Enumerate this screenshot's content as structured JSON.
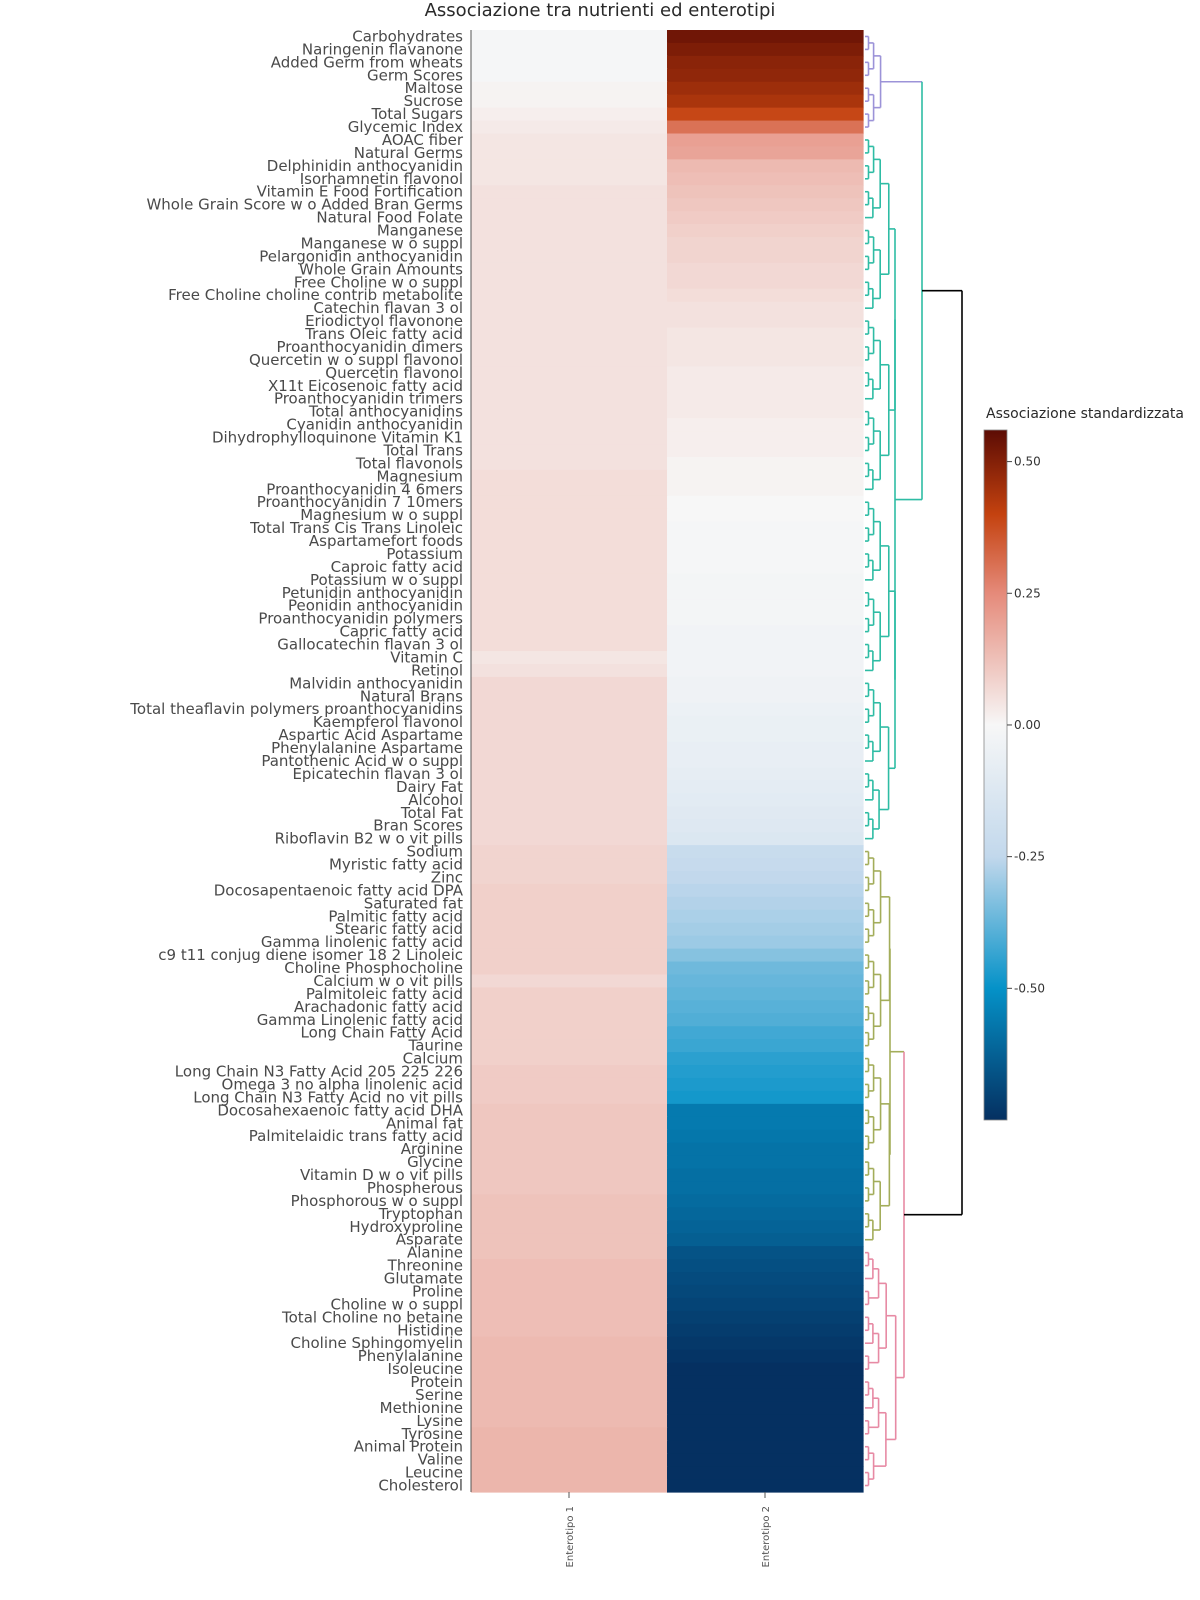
{
  "chart_data": {
    "type": "heatmap",
    "title": "Associazione tra nutrienti ed enterotipi",
    "columns": [
      "Enterotipo 1",
      "Enterotipo 2"
    ],
    "rows": [
      "Carbohydrates",
      "Naringenin  flavanone",
      "Added Germ from wheats",
      "Germ Scores",
      "Maltose",
      "Sucrose",
      "Total Sugars",
      "Glycemic Index",
      "AOAC fiber",
      "Natural Germs",
      "Delphinidin  anthocyanidin",
      "Isorhamnetin  flavonol",
      "Vitamin E   Food Fortification",
      "Whole Grain Score w o Added Bran   Germs",
      "Natural Food Folate",
      "Manganese",
      "Manganese w o suppl",
      "Pelargonidin  anthocyanidin",
      "Whole Grain Amounts",
      "Free Choline w o suppl",
      "Free Choline  choline contrib  metabolite",
      "Catechin  flavan 3 ol",
      "Eriodictyol  flavonone",
      "Trans Oleic fatty acid",
      "Proanthocyanidin  dimers",
      "Quercetin w o suppl   flavonol",
      "Quercetin  flavonol",
      "X11t Eicosenoic fatty acid",
      "Proanthocyanidin  trimers",
      "Total anthocyanidins",
      "Cyanidin  anthocyanidin",
      "Dihydrophylloquinone Vitamin K1",
      "Total Trans",
      "Total flavonols",
      "Magnesium",
      "Proanthocyanidin  4 6mers",
      "Proanthocyanidin  7 10mers",
      "Magnesium w o suppl",
      "Total Trans Cis Trans Linoleic",
      "Aspartamefort  foods",
      "Potassium",
      "Caproic fatty acid",
      "Potassium w o suppl",
      "Petunidin  anthocyanidin",
      "Peonidin  anthocyanidin",
      "Proanthocyanidin  polymers",
      "Capric fatty acid",
      "Gallocatechin  flavan 3 ol",
      "Vitamin C",
      "Retinol",
      "Malvidin  anthocyanidin",
      "Natural Brans",
      "Total theaflavin   polymers proanthocyanidins",
      "Kaempferol  flavonol",
      "Aspartic Acid  Aspartame",
      "Phenylalanine  Aspartame",
      "Pantothenic Acid w o suppl",
      "Epicatechin  flavan 3 ol",
      "Dairy Fat",
      "Alcohol",
      "Total Fat",
      "Bran Scores",
      "Riboflavin B2 w o vit  pills",
      "Sodium",
      "Myristic fatty acid",
      "Zinc",
      "Docosapentaenoic fatty acid  DPA",
      "Saturated fat",
      "Palmitic fatty acid",
      "Stearic fatty acid",
      "Gamma linolenic fatty acid",
      "c9 t11 conjug diene isomer 18 2 Linoleic",
      "Choline  Phosphocholine",
      "Calcium w o vit  pills",
      "Palmitoleic fatty acid",
      "Arachadonic fatty acid",
      "Gamma Linolenic fatty acid",
      "Long Chain Fatty Acid",
      "Taurine",
      "Calcium",
      "Long Chain N3 Fatty Acid 205 225 226",
      "Omega 3 no alpha linolenic acid",
      "Long Chain N3 Fatty Acid no vit  pills",
      "Docosahexaenoic fatty acid  DHA",
      "Animal fat",
      "Palmitelaidic trans fatty acid",
      "Arginine",
      "Glycine",
      "Vitamin D w o vit  pills",
      "Phospherous",
      "Phosphorous w o suppl",
      "Tryptophan",
      "Hydroxyproline",
      "Asparate",
      "Alanine",
      "Threonine",
      "Glutamate",
      "Proline",
      "Choline w o suppl",
      "Total Choline  no betaine",
      "Histidine",
      "Choline  Sphingomyelin",
      "Phenylalanine",
      "Isoleucine",
      "Protein",
      "Serine",
      "Methionine",
      "Lysine",
      "Tyrosine",
      "Animal Protein",
      "Valine",
      "Leucine",
      "Cholesterol"
    ],
    "values": [
      [
        -0.01,
        0.53
      ],
      [
        -0.01,
        0.51
      ],
      [
        -0.01,
        0.49
      ],
      [
        -0.01,
        0.48
      ],
      [
        0.01,
        0.46
      ],
      [
        0.01,
        0.44
      ],
      [
        0.02,
        0.39
      ],
      [
        0.03,
        0.3
      ],
      [
        0.04,
        0.2
      ],
      [
        0.04,
        0.19
      ],
      [
        0.04,
        0.14
      ],
      [
        0.04,
        0.13
      ],
      [
        0.05,
        0.12
      ],
      [
        0.05,
        0.11
      ],
      [
        0.05,
        0.1
      ],
      [
        0.05,
        0.09
      ],
      [
        0.05,
        0.08
      ],
      [
        0.05,
        0.08
      ],
      [
        0.05,
        0.07
      ],
      [
        0.05,
        0.07
      ],
      [
        0.05,
        0.06
      ],
      [
        0.05,
        0.05
      ],
      [
        0.05,
        0.05
      ],
      [
        0.05,
        0.04
      ],
      [
        0.05,
        0.04
      ],
      [
        0.05,
        0.04
      ],
      [
        0.05,
        0.03
      ],
      [
        0.05,
        0.03
      ],
      [
        0.05,
        0.03
      ],
      [
        0.05,
        0.03
      ],
      [
        0.05,
        0.02
      ],
      [
        0.05,
        0.02
      ],
      [
        0.05,
        0.02
      ],
      [
        0.05,
        0.01
      ],
      [
        0.06,
        0.01
      ],
      [
        0.06,
        0.01
      ],
      [
        0.06,
        0.0
      ],
      [
        0.06,
        0.0
      ],
      [
        0.06,
        -0.01
      ],
      [
        0.06,
        -0.01
      ],
      [
        0.06,
        -0.01
      ],
      [
        0.06,
        -0.01
      ],
      [
        0.06,
        -0.02
      ],
      [
        0.06,
        -0.02
      ],
      [
        0.06,
        -0.02
      ],
      [
        0.06,
        -0.02
      ],
      [
        0.06,
        -0.03
      ],
      [
        0.06,
        -0.03
      ],
      [
        0.04,
        -0.03
      ],
      [
        0.05,
        -0.03
      ],
      [
        0.07,
        -0.04
      ],
      [
        0.07,
        -0.04
      ],
      [
        0.07,
        -0.05
      ],
      [
        0.07,
        -0.06
      ],
      [
        0.07,
        -0.06
      ],
      [
        0.07,
        -0.07
      ],
      [
        0.07,
        -0.07
      ],
      [
        0.07,
        -0.08
      ],
      [
        0.07,
        -0.09
      ],
      [
        0.07,
        -0.1
      ],
      [
        0.07,
        -0.11
      ],
      [
        0.07,
        -0.12
      ],
      [
        0.07,
        -0.13
      ],
      [
        0.08,
        -0.22
      ],
      [
        0.08,
        -0.23
      ],
      [
        0.08,
        -0.25
      ],
      [
        0.09,
        -0.26
      ],
      [
        0.09,
        -0.27
      ],
      [
        0.09,
        -0.28
      ],
      [
        0.09,
        -0.29
      ],
      [
        0.09,
        -0.3
      ],
      [
        0.09,
        -0.33
      ],
      [
        0.09,
        -0.36
      ],
      [
        0.07,
        -0.37
      ],
      [
        0.09,
        -0.38
      ],
      [
        0.09,
        -0.39
      ],
      [
        0.09,
        -0.4
      ],
      [
        0.09,
        -0.42
      ],
      [
        0.09,
        -0.43
      ],
      [
        0.09,
        -0.45
      ],
      [
        0.1,
        -0.46
      ],
      [
        0.1,
        -0.47
      ],
      [
        0.1,
        -0.48
      ],
      [
        0.11,
        -0.56
      ],
      [
        0.11,
        -0.56
      ],
      [
        0.11,
        -0.57
      ],
      [
        0.11,
        -0.58
      ],
      [
        0.11,
        -0.58
      ],
      [
        0.11,
        -0.59
      ],
      [
        0.11,
        -0.59
      ],
      [
        0.12,
        -0.6
      ],
      [
        0.12,
        -0.61
      ],
      [
        0.12,
        -0.62
      ],
      [
        0.12,
        -0.63
      ],
      [
        0.12,
        -0.66
      ],
      [
        0.13,
        -0.67
      ],
      [
        0.13,
        -0.68
      ],
      [
        0.13,
        -0.69
      ],
      [
        0.13,
        -0.7
      ],
      [
        0.13,
        -0.71
      ],
      [
        0.13,
        -0.72
      ],
      [
        0.14,
        -0.73
      ],
      [
        0.14,
        -0.74
      ],
      [
        0.14,
        -0.75
      ],
      [
        0.14,
        -0.76
      ],
      [
        0.14,
        -0.77
      ],
      [
        0.14,
        -0.78
      ],
      [
        0.14,
        -0.79
      ],
      [
        0.15,
        -0.8
      ],
      [
        0.15,
        -0.81
      ],
      [
        0.15,
        -0.82
      ],
      [
        0.15,
        -0.83
      ],
      [
        0.15,
        -0.84
      ]
    ],
    "colorbar": {
      "title": "Associazione standardizzata",
      "range": [
        -0.75,
        0.56
      ],
      "ticks": [
        0.5,
        0.25,
        0.0,
        -0.25,
        -0.5
      ],
      "tick_labels": [
        "0.50",
        "0.25",
        "0.00",
        "-0.25",
        "-0.50"
      ],
      "colorscale": [
        [
          -0.75,
          "#053061"
        ],
        [
          -0.5,
          "#0592c8"
        ],
        [
          -0.25,
          "#c2d8ec"
        ],
        [
          0.0,
          "#f7f7f7"
        ],
        [
          0.25,
          "#e58a7a"
        ],
        [
          0.4,
          "#c4420f"
        ],
        [
          0.56,
          "#5c0c04"
        ]
      ]
    },
    "dendrogram": {
      "clusters": [
        {
          "rows": [
            0,
            7
          ],
          "color": "#9c93d8"
        },
        {
          "rows": [
            8,
            62
          ],
          "color": "#2ebca4"
        },
        {
          "rows": [
            63,
            93
          ],
          "color": "#a3ad5a"
        },
        {
          "rows": [
            94,
            112
          ],
          "color": "#e78aa4"
        }
      ],
      "root_color": "#000000"
    }
  }
}
